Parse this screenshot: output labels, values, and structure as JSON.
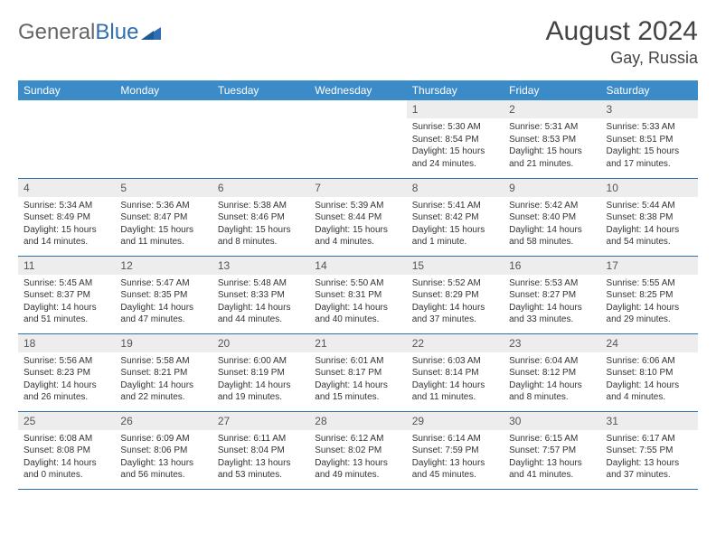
{
  "brand": {
    "part1": "General",
    "part2": "Blue"
  },
  "title": "August 2024",
  "location": "Gay, Russia",
  "colors": {
    "header_bg": "#3b8bc9",
    "rule": "#2f6fb0",
    "daynum_bg": "#ededed",
    "text": "#333333"
  },
  "day_labels": [
    "Sunday",
    "Monday",
    "Tuesday",
    "Wednesday",
    "Thursday",
    "Friday",
    "Saturday"
  ],
  "weeks": [
    [
      null,
      null,
      null,
      null,
      {
        "n": "1",
        "sunrise": "5:30 AM",
        "sunset": "8:54 PM",
        "daylight": "15 hours and 24 minutes."
      },
      {
        "n": "2",
        "sunrise": "5:31 AM",
        "sunset": "8:53 PM",
        "daylight": "15 hours and 21 minutes."
      },
      {
        "n": "3",
        "sunrise": "5:33 AM",
        "sunset": "8:51 PM",
        "daylight": "15 hours and 17 minutes."
      }
    ],
    [
      {
        "n": "4",
        "sunrise": "5:34 AM",
        "sunset": "8:49 PM",
        "daylight": "15 hours and 14 minutes."
      },
      {
        "n": "5",
        "sunrise": "5:36 AM",
        "sunset": "8:47 PM",
        "daylight": "15 hours and 11 minutes."
      },
      {
        "n": "6",
        "sunrise": "5:38 AM",
        "sunset": "8:46 PM",
        "daylight": "15 hours and 8 minutes."
      },
      {
        "n": "7",
        "sunrise": "5:39 AM",
        "sunset": "8:44 PM",
        "daylight": "15 hours and 4 minutes."
      },
      {
        "n": "8",
        "sunrise": "5:41 AM",
        "sunset": "8:42 PM",
        "daylight": "15 hours and 1 minute."
      },
      {
        "n": "9",
        "sunrise": "5:42 AM",
        "sunset": "8:40 PM",
        "daylight": "14 hours and 58 minutes."
      },
      {
        "n": "10",
        "sunrise": "5:44 AM",
        "sunset": "8:38 PM",
        "daylight": "14 hours and 54 minutes."
      }
    ],
    [
      {
        "n": "11",
        "sunrise": "5:45 AM",
        "sunset": "8:37 PM",
        "daylight": "14 hours and 51 minutes."
      },
      {
        "n": "12",
        "sunrise": "5:47 AM",
        "sunset": "8:35 PM",
        "daylight": "14 hours and 47 minutes."
      },
      {
        "n": "13",
        "sunrise": "5:48 AM",
        "sunset": "8:33 PM",
        "daylight": "14 hours and 44 minutes."
      },
      {
        "n": "14",
        "sunrise": "5:50 AM",
        "sunset": "8:31 PM",
        "daylight": "14 hours and 40 minutes."
      },
      {
        "n": "15",
        "sunrise": "5:52 AM",
        "sunset": "8:29 PM",
        "daylight": "14 hours and 37 minutes."
      },
      {
        "n": "16",
        "sunrise": "5:53 AM",
        "sunset": "8:27 PM",
        "daylight": "14 hours and 33 minutes."
      },
      {
        "n": "17",
        "sunrise": "5:55 AM",
        "sunset": "8:25 PM",
        "daylight": "14 hours and 29 minutes."
      }
    ],
    [
      {
        "n": "18",
        "sunrise": "5:56 AM",
        "sunset": "8:23 PM",
        "daylight": "14 hours and 26 minutes."
      },
      {
        "n": "19",
        "sunrise": "5:58 AM",
        "sunset": "8:21 PM",
        "daylight": "14 hours and 22 minutes."
      },
      {
        "n": "20",
        "sunrise": "6:00 AM",
        "sunset": "8:19 PM",
        "daylight": "14 hours and 19 minutes."
      },
      {
        "n": "21",
        "sunrise": "6:01 AM",
        "sunset": "8:17 PM",
        "daylight": "14 hours and 15 minutes."
      },
      {
        "n": "22",
        "sunrise": "6:03 AM",
        "sunset": "8:14 PM",
        "daylight": "14 hours and 11 minutes."
      },
      {
        "n": "23",
        "sunrise": "6:04 AM",
        "sunset": "8:12 PM",
        "daylight": "14 hours and 8 minutes."
      },
      {
        "n": "24",
        "sunrise": "6:06 AM",
        "sunset": "8:10 PM",
        "daylight": "14 hours and 4 minutes."
      }
    ],
    [
      {
        "n": "25",
        "sunrise": "6:08 AM",
        "sunset": "8:08 PM",
        "daylight": "14 hours and 0 minutes."
      },
      {
        "n": "26",
        "sunrise": "6:09 AM",
        "sunset": "8:06 PM",
        "daylight": "13 hours and 56 minutes."
      },
      {
        "n": "27",
        "sunrise": "6:11 AM",
        "sunset": "8:04 PM",
        "daylight": "13 hours and 53 minutes."
      },
      {
        "n": "28",
        "sunrise": "6:12 AM",
        "sunset": "8:02 PM",
        "daylight": "13 hours and 49 minutes."
      },
      {
        "n": "29",
        "sunrise": "6:14 AM",
        "sunset": "7:59 PM",
        "daylight": "13 hours and 45 minutes."
      },
      {
        "n": "30",
        "sunrise": "6:15 AM",
        "sunset": "7:57 PM",
        "daylight": "13 hours and 41 minutes."
      },
      {
        "n": "31",
        "sunrise": "6:17 AM",
        "sunset": "7:55 PM",
        "daylight": "13 hours and 37 minutes."
      }
    ]
  ],
  "labels": {
    "sunrise": "Sunrise: ",
    "sunset": "Sunset: ",
    "daylight": "Daylight: "
  }
}
